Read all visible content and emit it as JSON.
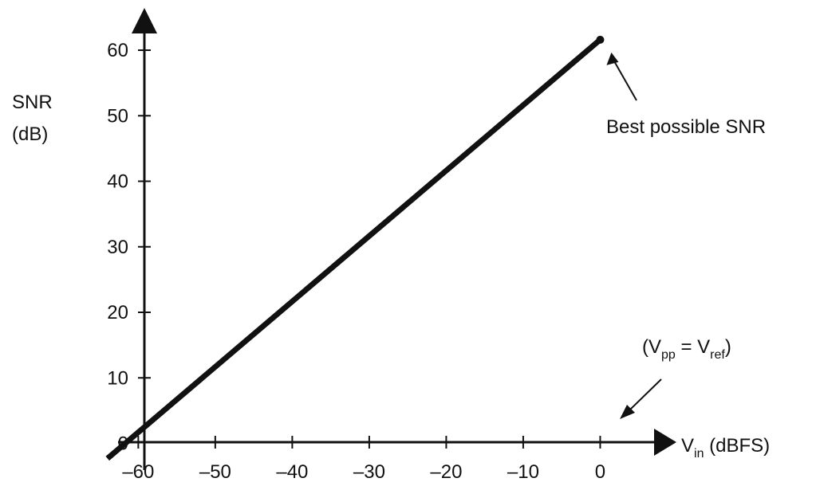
{
  "chart_data": {
    "type": "line",
    "title": "",
    "xlabel": {
      "main": "V",
      "sub": "in",
      "rest": " (dBFS)"
    },
    "ylabel": {
      "line1": "SNR",
      "line2": "(dB)"
    },
    "x_ticks": [
      -60,
      -50,
      -40,
      -30,
      -20,
      -10,
      0
    ],
    "x_tick_labels": [
      "–60",
      "–50",
      "–40",
      "–30",
      "–20",
      "–10",
      "0"
    ],
    "y_ticks": [
      0,
      10,
      20,
      30,
      40,
      50,
      60
    ],
    "y_tick_labels": [
      "0",
      "10",
      "20",
      "30",
      "40",
      "50",
      "60"
    ],
    "xlim": [
      -64.7,
      7
    ],
    "ylim": [
      -3.1,
      64.5
    ],
    "series": [
      {
        "x": [
          -64,
          0
        ],
        "y": [
          -2.3,
          61.6
        ]
      }
    ],
    "annotations": {
      "best_snr": {
        "text": "Best possible SNR",
        "point": {
          "x": 0,
          "y": 61.6
        }
      },
      "vpp_vref": {
        "open": "(V",
        "pp": "pp",
        "eq": " = V",
        "ref": "ref",
        "close": ")"
      }
    },
    "grid": false,
    "legend": "none"
  },
  "colors": {
    "axis": "#111111",
    "line": "#111111",
    "text": "#111111"
  }
}
